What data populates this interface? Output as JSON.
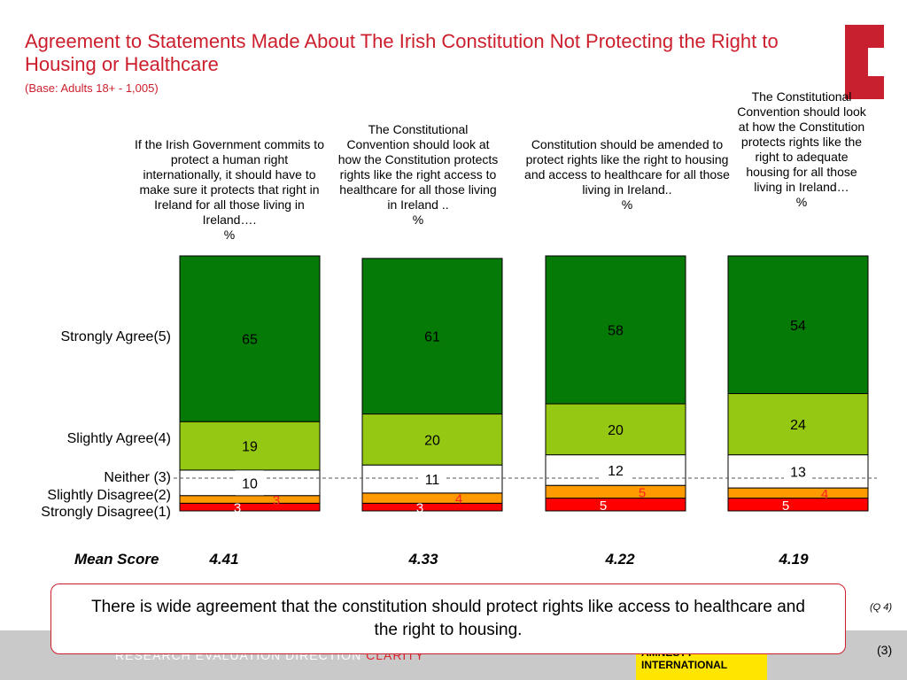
{
  "header": {
    "title": "Agreement to Statements Made About The Irish Constitution Not Protecting the Right to Housing or Healthcare",
    "subtitle": "(Base: Adults 18+ - 1,005)"
  },
  "chart_data": {
    "type": "bar",
    "stacked": true,
    "categories": [
      "If the Irish Government commits to protect a human right internationally, it should have to make sure it protects that right in Ireland for all those living in Ireland….",
      "The Constitutional Convention should look at how the Constitution protects rights like the right access to healthcare for all those living in Ireland ..",
      "Constitution should be amended to protect rights like the right to housing and access to healthcare for all those living in Ireland..",
      "The Constitutional Convention should look at how the Constitution protects rights like the right to adequate housing for all those living in Ireland…"
    ],
    "unit": "%",
    "series": [
      {
        "name": "Strongly Agree(5)",
        "color": "#067a06",
        "values": [
          65,
          61,
          58,
          54
        ]
      },
      {
        "name": "Slightly Agree(4)",
        "color": "#95c812",
        "values": [
          19,
          20,
          20,
          24
        ]
      },
      {
        "name": "Neither (3)",
        "color": "#ffffff",
        "values": [
          10,
          11,
          12,
          13
        ]
      },
      {
        "name": "Slightly Disagree(2)",
        "color": "#ff9a00",
        "values": [
          3,
          4,
          5,
          4
        ]
      },
      {
        "name": "Strongly Disagree(1)",
        "color": "#ff0000",
        "values": [
          3,
          3,
          5,
          5
        ]
      }
    ],
    "mean_label": "Mean Score",
    "mean_scores": [
      "4.41",
      "4.33",
      "4.22",
      "4.19"
    ]
  },
  "callout": "There is wide agreement that the constitution should protect rights like access to healthcare and the right to housing.",
  "question_ref": "(Q 4)",
  "page_number": "(3)",
  "footer": {
    "left_text": "RESEARCH EVALUATION DIRECTION",
    "brand": "CLARITY",
    "partner_logo": "AMNESTY INTERNATIONAL"
  },
  "colors": {
    "title": "#cc1f2d",
    "logo": "#c8202e"
  }
}
